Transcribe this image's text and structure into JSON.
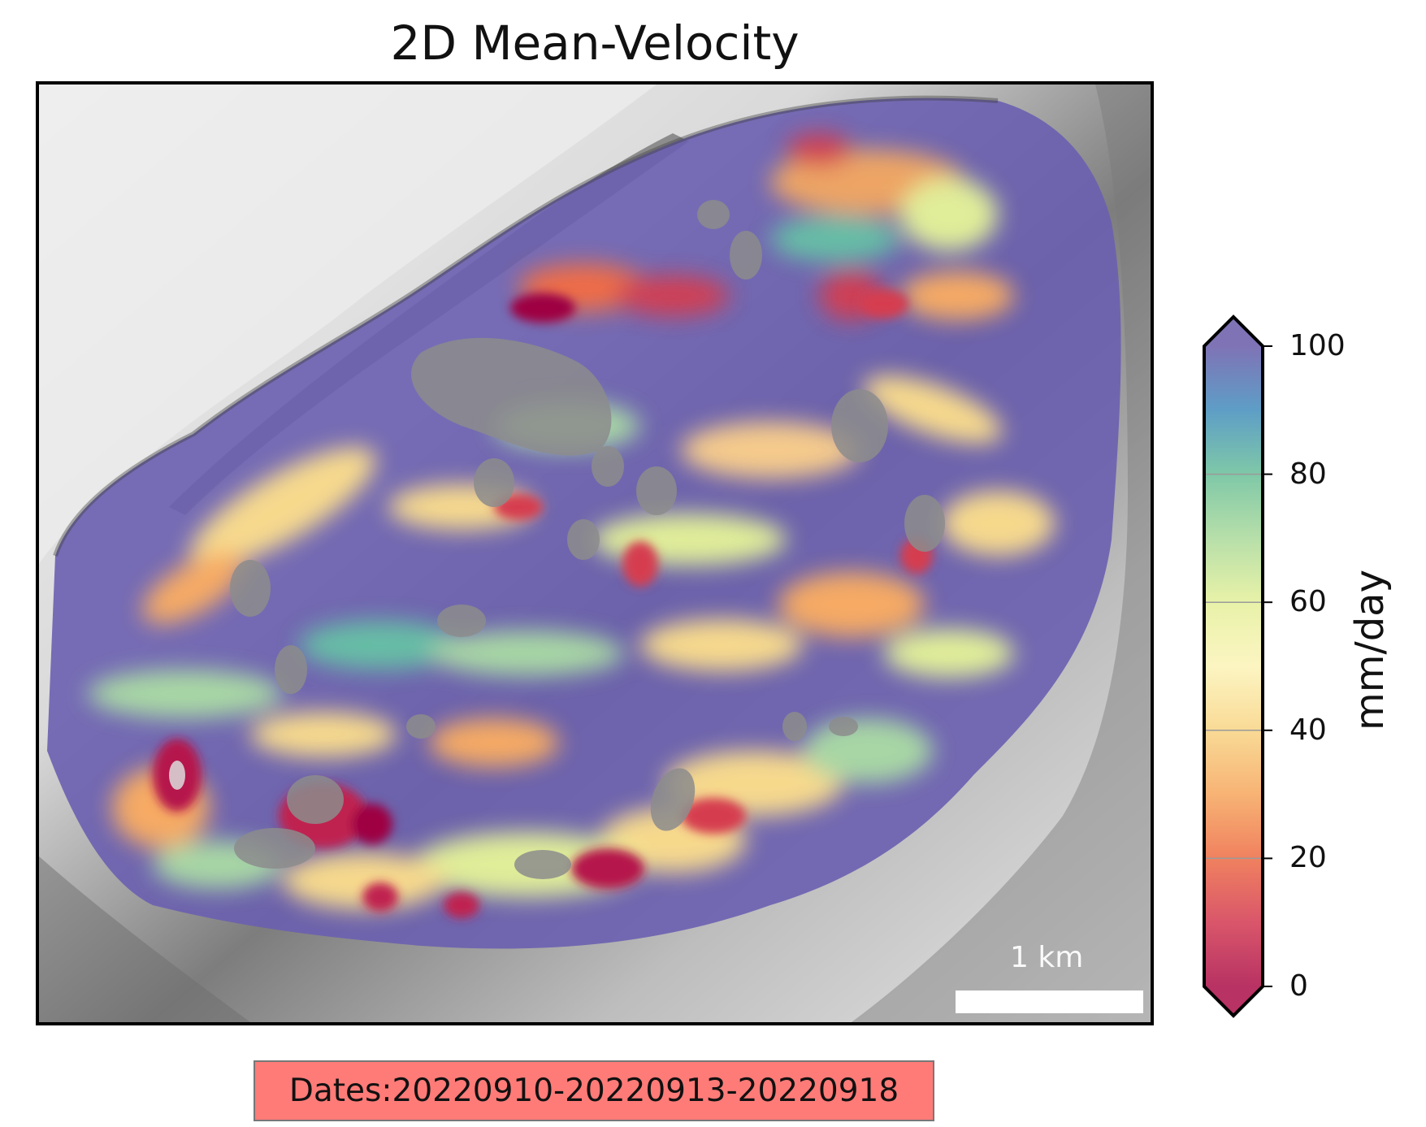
{
  "title": "2D Mean-Velocity",
  "map": {
    "scale_bar_label": "1 km",
    "colormap": "Spectral",
    "colormap_stops": [
      "#9e0142",
      "#d53e4f",
      "#f46d43",
      "#fdae61",
      "#fee08b",
      "#ffffbf",
      "#e6f598",
      "#abdda4",
      "#66c2a5",
      "#3288bd",
      "#5e4fa2"
    ]
  },
  "colorbar": {
    "label": "mm/day",
    "ticks": [
      "0",
      "20",
      "40",
      "60",
      "80",
      "100"
    ],
    "range": [
      0,
      100
    ],
    "extend": "both"
  },
  "dates_label": "Dates:20220910-20220913-20220918"
}
